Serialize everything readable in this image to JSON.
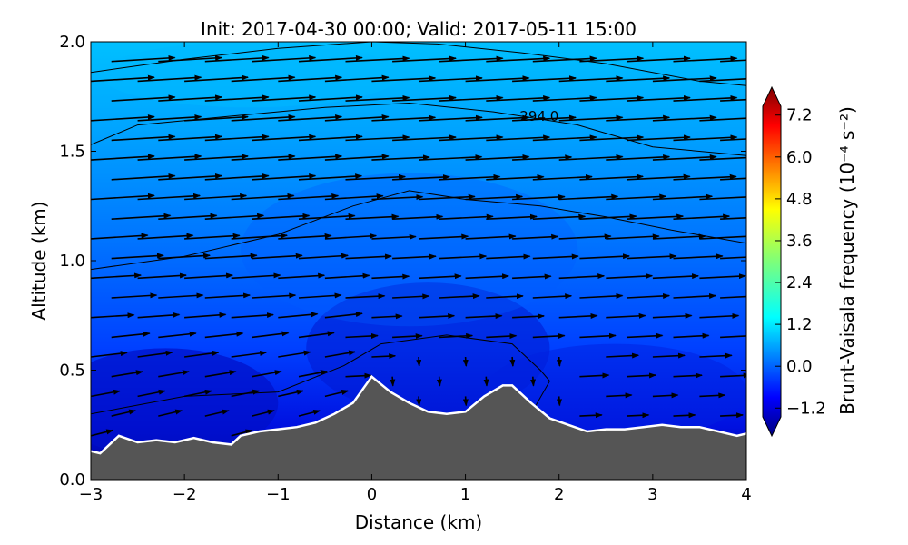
{
  "chart_data": {
    "type": "heatmap",
    "title": "Init: 2017-04-30 00:00; Valid: 2017-05-11 15:00",
    "xlabel": "Distance (km)",
    "ylabel": "Altitude (km)",
    "xlim": [
      -3,
      4
    ],
    "ylim": [
      0,
      2
    ],
    "x_ticks": [
      "−3",
      "−2",
      "−1",
      "0",
      "1",
      "2",
      "3",
      "4"
    ],
    "y_ticks": [
      "0.0",
      "0.5",
      "1.0",
      "1.5",
      "2.0"
    ],
    "x_tick_values": [
      -3,
      -2,
      -1,
      0,
      1,
      2,
      3,
      4
    ],
    "y_tick_values": [
      0,
      0.5,
      1.0,
      1.5,
      2.0
    ],
    "colorbar": {
      "label": "Brunt-Vaisala frequency (10⁻⁴ s⁻²)",
      "ticks": [
        "−1.2",
        "0.0",
        "1.2",
        "2.4",
        "3.6",
        "4.8",
        "6.0",
        "7.2"
      ],
      "tick_values": [
        -1.2,
        0.0,
        1.2,
        2.4,
        3.6,
        4.8,
        6.0,
        7.2
      ],
      "vmin": -2.0,
      "vmax": 8.0,
      "colormap": "jet",
      "extend": "both"
    },
    "contour_label": "294.0",
    "terrain": {
      "x": [
        -3.0,
        -2.9,
        -2.7,
        -2.5,
        -2.3,
        -2.1,
        -1.9,
        -1.7,
        -1.5,
        -1.4,
        -1.2,
        -1.0,
        -0.8,
        -0.6,
        -0.4,
        -0.2,
        0.0,
        0.2,
        0.4,
        0.6,
        0.8,
        1.0,
        1.2,
        1.4,
        1.5,
        1.7,
        1.9,
        2.1,
        2.3,
        2.5,
        2.7,
        2.9,
        3.1,
        3.3,
        3.5,
        3.7,
        3.9,
        4.0
      ],
      "y": [
        0.13,
        0.12,
        0.2,
        0.17,
        0.18,
        0.17,
        0.19,
        0.17,
        0.16,
        0.2,
        0.22,
        0.23,
        0.24,
        0.26,
        0.3,
        0.35,
        0.47,
        0.4,
        0.35,
        0.31,
        0.3,
        0.31,
        0.38,
        0.43,
        0.43,
        0.35,
        0.28,
        0.25,
        0.22,
        0.23,
        0.23,
        0.24,
        0.25,
        0.24,
        0.24,
        0.22,
        0.2,
        0.21
      ]
    }
  }
}
